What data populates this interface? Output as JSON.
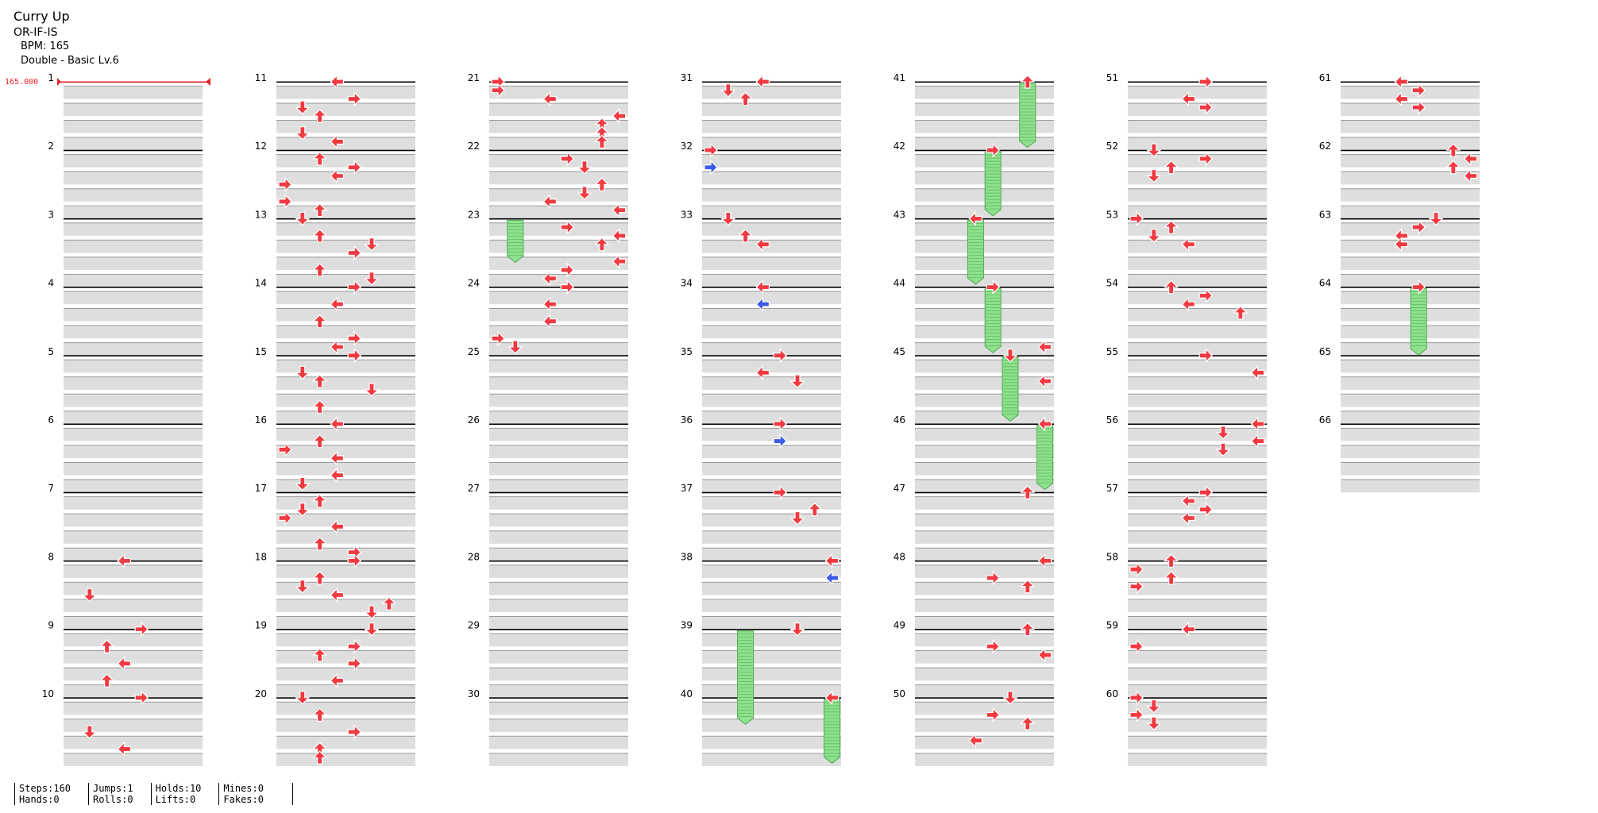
{
  "song": {
    "title": "Curry Up",
    "artist": "OR-IF-IS",
    "bpm_text": "BPM: 165",
    "difficulty": "Double - Basic Lv.6"
  },
  "bpm_marker": "165.000",
  "stats": [
    {
      "top": "Steps:160",
      "bottom": "Hands:0"
    },
    {
      "top": "Jumps:1",
      "bottom": "Rolls:0"
    },
    {
      "top": "Holds:10",
      "bottom": "Lifts:0"
    },
    {
      "top": "Mines:0",
      "bottom": "Fakes:0"
    }
  ],
  "chart_data": {
    "type": "step-chart",
    "measures_shown": 66,
    "measures_per_column": 10,
    "rows_per_measure": 8,
    "columns_per_panel": 8,
    "colors": {
      "note": "#f03a42",
      "alt_note": "#3d5ae8",
      "hold": "#8fe08f",
      "band": "#dedede"
    },
    "notes": [
      [
        8,
        0,
        3,
        "r"
      ],
      [
        8,
        4,
        1,
        "r"
      ],
      [
        9,
        0,
        4,
        "r"
      ],
      [
        9,
        2,
        2,
        "r"
      ],
      [
        9,
        4,
        3,
        "r"
      ],
      [
        9,
        6,
        2,
        "r"
      ],
      [
        10,
        0,
        4,
        "r"
      ],
      [
        10,
        4,
        1,
        "r"
      ],
      [
        10,
        6,
        3,
        "r"
      ],
      [
        11,
        0,
        3,
        "r"
      ],
      [
        11,
        2,
        4,
        "r"
      ],
      [
        11,
        3,
        1,
        "r"
      ],
      [
        11,
        4,
        2,
        "r"
      ],
      [
        11,
        6,
        1,
        "r"
      ],
      [
        11,
        7,
        3,
        "r"
      ],
      [
        12,
        1,
        2,
        "r"
      ],
      [
        12,
        2,
        4,
        "r"
      ],
      [
        12,
        3,
        3,
        "r"
      ],
      [
        12,
        4,
        0,
        "r"
      ],
      [
        12,
        6,
        0,
        "r"
      ],
      [
        12,
        7,
        2,
        "r"
      ],
      [
        13,
        0,
        1,
        "r"
      ],
      [
        13,
        2,
        2,
        "r"
      ],
      [
        13,
        3,
        5,
        "r"
      ],
      [
        13,
        4,
        4,
        "r"
      ],
      [
        13,
        6,
        2,
        "r"
      ],
      [
        13,
        7,
        5,
        "r"
      ],
      [
        14,
        0,
        4,
        "r"
      ],
      [
        14,
        2,
        3,
        "r"
      ],
      [
        14,
        4,
        2,
        "r"
      ],
      [
        14,
        6,
        4,
        "r"
      ],
      [
        14,
        7,
        3,
        "r"
      ],
      [
        15,
        0,
        4,
        "r"
      ],
      [
        15,
        2,
        1,
        "r"
      ],
      [
        15,
        3,
        2,
        "r"
      ],
      [
        15,
        4,
        5,
        "r"
      ],
      [
        15,
        6,
        2,
        "r"
      ],
      [
        16,
        0,
        3,
        "r"
      ],
      [
        16,
        2,
        2,
        "r"
      ],
      [
        16,
        3,
        0,
        "r"
      ],
      [
        16,
        4,
        3,
        "r"
      ],
      [
        16,
        6,
        3,
        "r"
      ],
      [
        16,
        7,
        1,
        "r"
      ],
      [
        17,
        1,
        2,
        "r"
      ],
      [
        17,
        2,
        1,
        "r"
      ],
      [
        17,
        3,
        0,
        "r"
      ],
      [
        17,
        4,
        3,
        "r"
      ],
      [
        17,
        6,
        2,
        "r"
      ],
      [
        17,
        7,
        4,
        "r"
      ],
      [
        18,
        0,
        4,
        "r"
      ],
      [
        18,
        2,
        2,
        "r"
      ],
      [
        18,
        3,
        1,
        "r"
      ],
      [
        18,
        4,
        3,
        "r"
      ],
      [
        18,
        5,
        6,
        "r"
      ],
      [
        18,
        6,
        5,
        "r"
      ],
      [
        19,
        0,
        5,
        "r"
      ],
      [
        19,
        2,
        4,
        "r"
      ],
      [
        19,
        3,
        2,
        "r"
      ],
      [
        19,
        4,
        4,
        "r"
      ],
      [
        19,
        6,
        3,
        "r"
      ],
      [
        20,
        0,
        1,
        "r"
      ],
      [
        20,
        2,
        2,
        "r"
      ],
      [
        20,
        4,
        4,
        "r"
      ],
      [
        20,
        6,
        2,
        "r"
      ],
      [
        20,
        7,
        2,
        "r"
      ],
      [
        21,
        0,
        0,
        "r"
      ],
      [
        21,
        1,
        0,
        "r"
      ],
      [
        21,
        2,
        3,
        "r"
      ],
      [
        21,
        4,
        7,
        "r"
      ],
      [
        21,
        5,
        6,
        "r"
      ],
      [
        21,
        6,
        6,
        "r"
      ],
      [
        21,
        7,
        6,
        "r"
      ],
      [
        22,
        1,
        4,
        "r"
      ],
      [
        22,
        2,
        5,
        "r"
      ],
      [
        22,
        4,
        6,
        "r"
      ],
      [
        22,
        5,
        5,
        "r"
      ],
      [
        22,
        6,
        3,
        "r"
      ],
      [
        22,
        7,
        7,
        "r"
      ],
      [
        23,
        1,
        4,
        "r"
      ],
      [
        23,
        2,
        7,
        "r"
      ],
      [
        23,
        3,
        6,
        "r"
      ],
      [
        23,
        5,
        7,
        "r"
      ],
      [
        23,
        6,
        4,
        "r"
      ],
      [
        23,
        7,
        3,
        "r"
      ],
      [
        24,
        0,
        4,
        "r"
      ],
      [
        24,
        2,
        3,
        "r"
      ],
      [
        24,
        4,
        3,
        "r"
      ],
      [
        24,
        6,
        0,
        "r"
      ],
      [
        24,
        7,
        1,
        "r"
      ],
      [
        31,
        0,
        3,
        "r"
      ],
      [
        31,
        1,
        1,
        "r"
      ],
      [
        31,
        2,
        2,
        "r"
      ],
      [
        32,
        0,
        0,
        "r"
      ],
      [
        32,
        2,
        0,
        "b"
      ],
      [
        33,
        0,
        1,
        "r"
      ],
      [
        33,
        2,
        2,
        "r"
      ],
      [
        33,
        3,
        3,
        "r"
      ],
      [
        34,
        0,
        3,
        "r"
      ],
      [
        34,
        2,
        3,
        "b"
      ],
      [
        35,
        0,
        4,
        "r"
      ],
      [
        35,
        2,
        3,
        "r"
      ],
      [
        35,
        3,
        5,
        "r"
      ],
      [
        36,
        0,
        4,
        "r"
      ],
      [
        36,
        2,
        4,
        "b"
      ],
      [
        37,
        0,
        4,
        "r"
      ],
      [
        37,
        2,
        6,
        "r"
      ],
      [
        37,
        3,
        5,
        "r"
      ],
      [
        38,
        0,
        7,
        "r"
      ],
      [
        38,
        2,
        7,
        "b"
      ],
      [
        39,
        0,
        5,
        "r"
      ],
      [
        40,
        0,
        7,
        "r"
      ],
      [
        41,
        0,
        6,
        "r"
      ],
      [
        42,
        0,
        4,
        "r"
      ],
      [
        43,
        0,
        3,
        "r"
      ],
      [
        44,
        0,
        4,
        "r"
      ],
      [
        44,
        7,
        7,
        "r"
      ],
      [
        45,
        0,
        5,
        "r"
      ],
      [
        45,
        3,
        7,
        "r"
      ],
      [
        46,
        0,
        7,
        "r"
      ],
      [
        47,
        0,
        6,
        "r"
      ],
      [
        48,
        0,
        7,
        "r"
      ],
      [
        48,
        2,
        4,
        "r"
      ],
      [
        48,
        3,
        6,
        "r"
      ],
      [
        49,
        0,
        6,
        "r"
      ],
      [
        49,
        2,
        4,
        "r"
      ],
      [
        49,
        3,
        7,
        "r"
      ],
      [
        50,
        0,
        5,
        "r"
      ],
      [
        50,
        2,
        4,
        "r"
      ],
      [
        50,
        3,
        6,
        "r"
      ],
      [
        50,
        5,
        3,
        "r"
      ],
      [
        51,
        0,
        4,
        "r"
      ],
      [
        51,
        2,
        3,
        "r"
      ],
      [
        51,
        3,
        4,
        "r"
      ],
      [
        52,
        0,
        1,
        "r"
      ],
      [
        52,
        1,
        4,
        "r"
      ],
      [
        52,
        2,
        2,
        "r"
      ],
      [
        52,
        3,
        1,
        "r"
      ],
      [
        53,
        0,
        0,
        "r"
      ],
      [
        53,
        1,
        2,
        "r"
      ],
      [
        53,
        2,
        1,
        "r"
      ],
      [
        53,
        3,
        3,
        "r"
      ],
      [
        54,
        0,
        2,
        "r"
      ],
      [
        54,
        1,
        4,
        "r"
      ],
      [
        54,
        2,
        3,
        "r"
      ],
      [
        54,
        3,
        6,
        "r"
      ],
      [
        55,
        0,
        4,
        "r"
      ],
      [
        55,
        2,
        7,
        "r"
      ],
      [
        56,
        0,
        7,
        "r"
      ],
      [
        56,
        1,
        5,
        "r"
      ],
      [
        56,
        2,
        7,
        "r"
      ],
      [
        56,
        3,
        5,
        "r"
      ],
      [
        57,
        0,
        4,
        "r"
      ],
      [
        57,
        1,
        3,
        "r"
      ],
      [
        57,
        2,
        4,
        "r"
      ],
      [
        57,
        3,
        3,
        "r"
      ],
      [
        58,
        0,
        2,
        "r"
      ],
      [
        58,
        1,
        0,
        "r"
      ],
      [
        58,
        2,
        2,
        "r"
      ],
      [
        58,
        3,
        0,
        "r"
      ],
      [
        59,
        0,
        3,
        "r"
      ],
      [
        59,
        2,
        0,
        "r"
      ],
      [
        60,
        0,
        0,
        "r"
      ],
      [
        60,
        1,
        1,
        "r"
      ],
      [
        60,
        2,
        0,
        "r"
      ],
      [
        60,
        3,
        1,
        "r"
      ],
      [
        61,
        0,
        3,
        "r"
      ],
      [
        61,
        1,
        4,
        "r"
      ],
      [
        61,
        2,
        3,
        "r"
      ],
      [
        61,
        3,
        4,
        "r"
      ],
      [
        62,
        0,
        6,
        "r"
      ],
      [
        62,
        1,
        7,
        "r"
      ],
      [
        62,
        2,
        6,
        "r"
      ],
      [
        62,
        3,
        7,
        "r"
      ],
      [
        63,
        0,
        5,
        "r"
      ],
      [
        63,
        1,
        4,
        "r"
      ],
      [
        63,
        2,
        3,
        "r"
      ],
      [
        63,
        3,
        3,
        "r"
      ],
      [
        64,
        0,
        4,
        "r"
      ]
    ],
    "holds": [
      [
        23,
        0,
        1,
        2,
        2
      ],
      [
        39,
        0,
        2,
        5,
        2
      ],
      [
        40,
        0,
        7,
        3,
        8
      ],
      [
        41,
        0,
        6,
        3,
        8
      ],
      [
        42,
        0,
        4,
        3,
        8
      ],
      [
        43,
        0,
        3,
        3,
        8
      ],
      [
        44,
        0,
        4,
        3,
        8
      ],
      [
        45,
        0,
        5,
        3,
        8
      ],
      [
        46,
        0,
        7,
        3,
        8
      ],
      [
        64,
        0,
        4,
        3,
        11
      ]
    ]
  }
}
